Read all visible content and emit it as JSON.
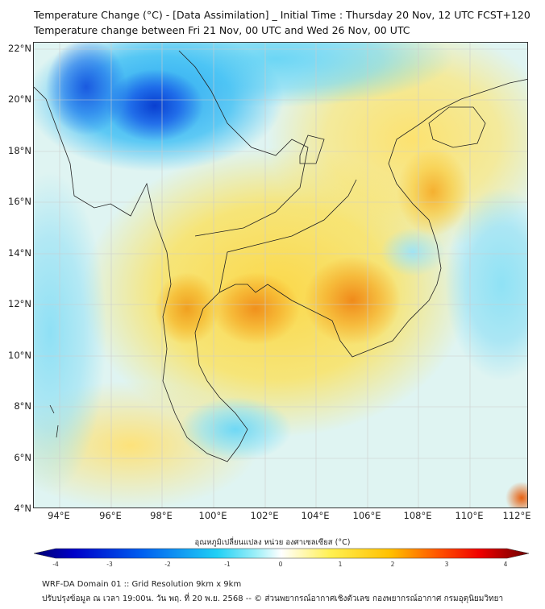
{
  "title_line1": "Temperature Change (°C) - [Data Assimilation] _ Initial Time : Thursday 20 Nov, 12 UTC FCST+120",
  "title_line2": "Temperature change between Fri 21 Nov, 00 UTC and Wed 26 Nov, 00 UTC",
  "map": {
    "lat_ticks": [
      "22°N",
      "20°N",
      "18°N",
      "16°N",
      "14°N",
      "12°N",
      "10°N",
      "8°N",
      "6°N",
      "4°N"
    ],
    "lon_ticks": [
      "94°E",
      "96°E",
      "98°E",
      "100°E",
      "102°E",
      "104°E",
      "106°E",
      "108°E",
      "110°E",
      "112°E"
    ]
  },
  "colorbar": {
    "label": "อุณหภูมิเปลี่ยนแปลง หน่วย องศาเซลเซียส (°C)",
    "ticks": [
      "-4",
      "-3",
      "-2",
      "-1",
      "0",
      "1",
      "2",
      "3",
      "4"
    ],
    "colors": [
      "#00006e",
      "#0000d0",
      "#0050f0",
      "#20c0f0",
      "#60e8f8",
      "#ffffff",
      "#fff060",
      "#ffd000",
      "#ff8000",
      "#ff1000",
      "#700000"
    ]
  },
  "footer": {
    "line1": "WRF-DA Domain 01 :: Grid Resolution 9km x 9km",
    "line2": "ปรับปรุงข้อมูล ณ เวลา 19:00น. วัน พฤ. ที่ 20 พ.ย. 2568 -- © ส่วนพยากรณ์อากาศเชิงตัวเลข กองพยากรณ์อากาศ กรมอุตุนิยมวิทยา"
  }
}
